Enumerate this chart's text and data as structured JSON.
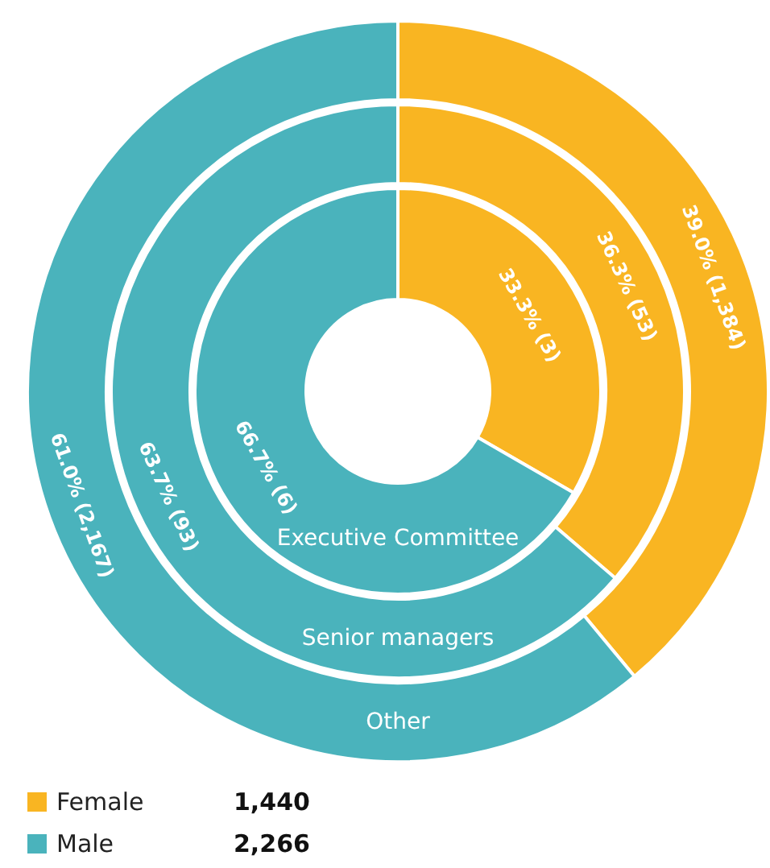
{
  "chart_data": {
    "type": "donut",
    "categories": [
      "Female",
      "Male"
    ],
    "colors": [
      "#f9b522",
      "#4ab3bc"
    ],
    "series": [
      {
        "name": "Executive Committee",
        "values": [
          3,
          6
        ],
        "value_labels": [
          "33.3% (3)",
          "66.7% (6)"
        ]
      },
      {
        "name": "Senior managers",
        "values": [
          53,
          93
        ],
        "value_labels": [
          "36.3% (53)",
          "63.7% (93)"
        ]
      },
      {
        "name": "Other",
        "values": [
          1384,
          2167
        ],
        "value_labels": [
          "39.0% (1,384)",
          "61.0% (2,167)"
        ]
      }
    ],
    "legend": "bottom left",
    "totals": [
      "1,440",
      "2,266"
    ]
  }
}
